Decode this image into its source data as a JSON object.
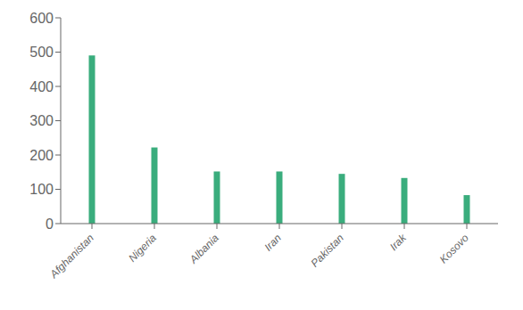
{
  "chart_data": {
    "type": "bar",
    "categories": [
      "Afghanistan",
      "Nigeria",
      "Albania",
      "Iran",
      "Pakistan",
      "Irak",
      "Kosovo"
    ],
    "values": [
      490,
      222,
      152,
      152,
      145,
      133,
      83
    ],
    "color": "#3aad7d",
    "ylim": [
      0,
      600
    ],
    "yticks": [
      0,
      100,
      200,
      300,
      400,
      500,
      600
    ],
    "grid": false
  }
}
